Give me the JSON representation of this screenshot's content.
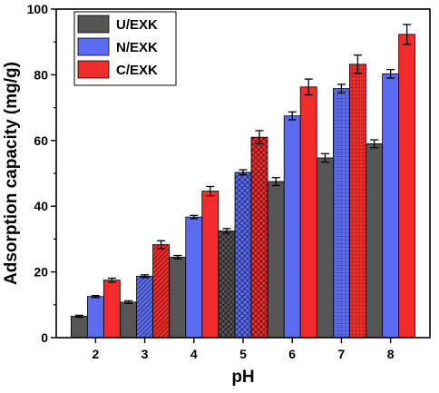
{
  "chart_data": {
    "type": "bar",
    "categories": [
      "2",
      "3",
      "4",
      "5",
      "6",
      "7",
      "8"
    ],
    "series": [
      {
        "name": "U/EXK",
        "values": [
          6.5,
          10.8,
          24.5,
          32.5,
          47.5,
          54.7,
          59.0
        ],
        "errors": [
          0.3,
          0.4,
          0.5,
          0.7,
          1.2,
          1.3,
          1.2
        ],
        "color": "#555555"
      },
      {
        "name": "N/EXK",
        "values": [
          12.5,
          18.7,
          36.7,
          50.3,
          67.5,
          75.8,
          80.3
        ],
        "errors": [
          0.3,
          0.4,
          0.5,
          0.8,
          1.2,
          1.3,
          1.3
        ],
        "color": "#5b6bf2"
      },
      {
        "name": "C/EXK",
        "values": [
          17.5,
          28.3,
          44.6,
          61.0,
          76.3,
          83.2,
          92.3
        ],
        "errors": [
          0.6,
          1.2,
          1.4,
          2.0,
          2.4,
          2.8,
          3.0
        ],
        "color": "#f22b2b"
      }
    ],
    "patterns": {
      "U/EXK": [
        "solid",
        "solid",
        "solid",
        "crosshatch",
        "solid",
        "solid",
        "solid"
      ],
      "N/EXK": [
        "solid",
        "hatch",
        "solid",
        "crosshatch",
        "solid",
        "grid",
        "solid"
      ],
      "C/EXK": [
        "solid",
        "hatch",
        "solid",
        "crosshatch",
        "solid",
        "grid",
        "solid"
      ]
    },
    "xlabel": "pH",
    "ylabel": "Adsorption capacity (mg/g)",
    "ylim": [
      0,
      100
    ],
    "yticks": [
      0,
      20,
      40,
      60,
      80,
      100
    ],
    "grid": false,
    "legend": "top-left"
  }
}
